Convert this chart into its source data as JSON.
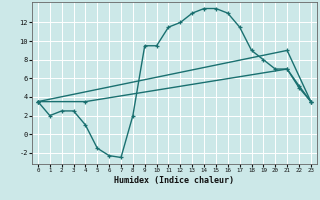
{
  "xlabel": "Humidex (Indice chaleur)",
  "xlim": [
    -0.5,
    23.5
  ],
  "ylim": [
    -3.2,
    14.2
  ],
  "yticks": [
    -2,
    0,
    2,
    4,
    6,
    8,
    10,
    12
  ],
  "xticks": [
    0,
    1,
    2,
    3,
    4,
    5,
    6,
    7,
    8,
    9,
    10,
    11,
    12,
    13,
    14,
    15,
    16,
    17,
    18,
    19,
    20,
    21,
    22,
    23
  ],
  "bg_color": "#cce8e8",
  "line_color": "#1a7070",
  "grid_color": "#ffffff",
  "line1_x": [
    0,
    1,
    2,
    3,
    4,
    5,
    6,
    7,
    8,
    9,
    10,
    11,
    12,
    13,
    14,
    15,
    16,
    17,
    18,
    19,
    20,
    21,
    22,
    23
  ],
  "line1_y": [
    3.5,
    2.0,
    2.5,
    2.5,
    1.0,
    -1.5,
    -2.3,
    -2.5,
    2.0,
    9.5,
    9.5,
    11.5,
    12.0,
    13.0,
    13.5,
    13.5,
    13.0,
    11.5,
    9.0,
    8.0,
    7.0,
    7.0,
    5.0,
    3.5
  ],
  "line2_x": [
    0,
    4,
    21,
    22,
    23
  ],
  "line2_y": [
    3.5,
    3.5,
    7.0,
    5.2,
    3.5
  ],
  "line3_x": [
    0,
    21,
    23
  ],
  "line3_y": [
    3.5,
    9.0,
    3.5
  ],
  "marker_size": 3.5,
  "linewidth": 1.0
}
